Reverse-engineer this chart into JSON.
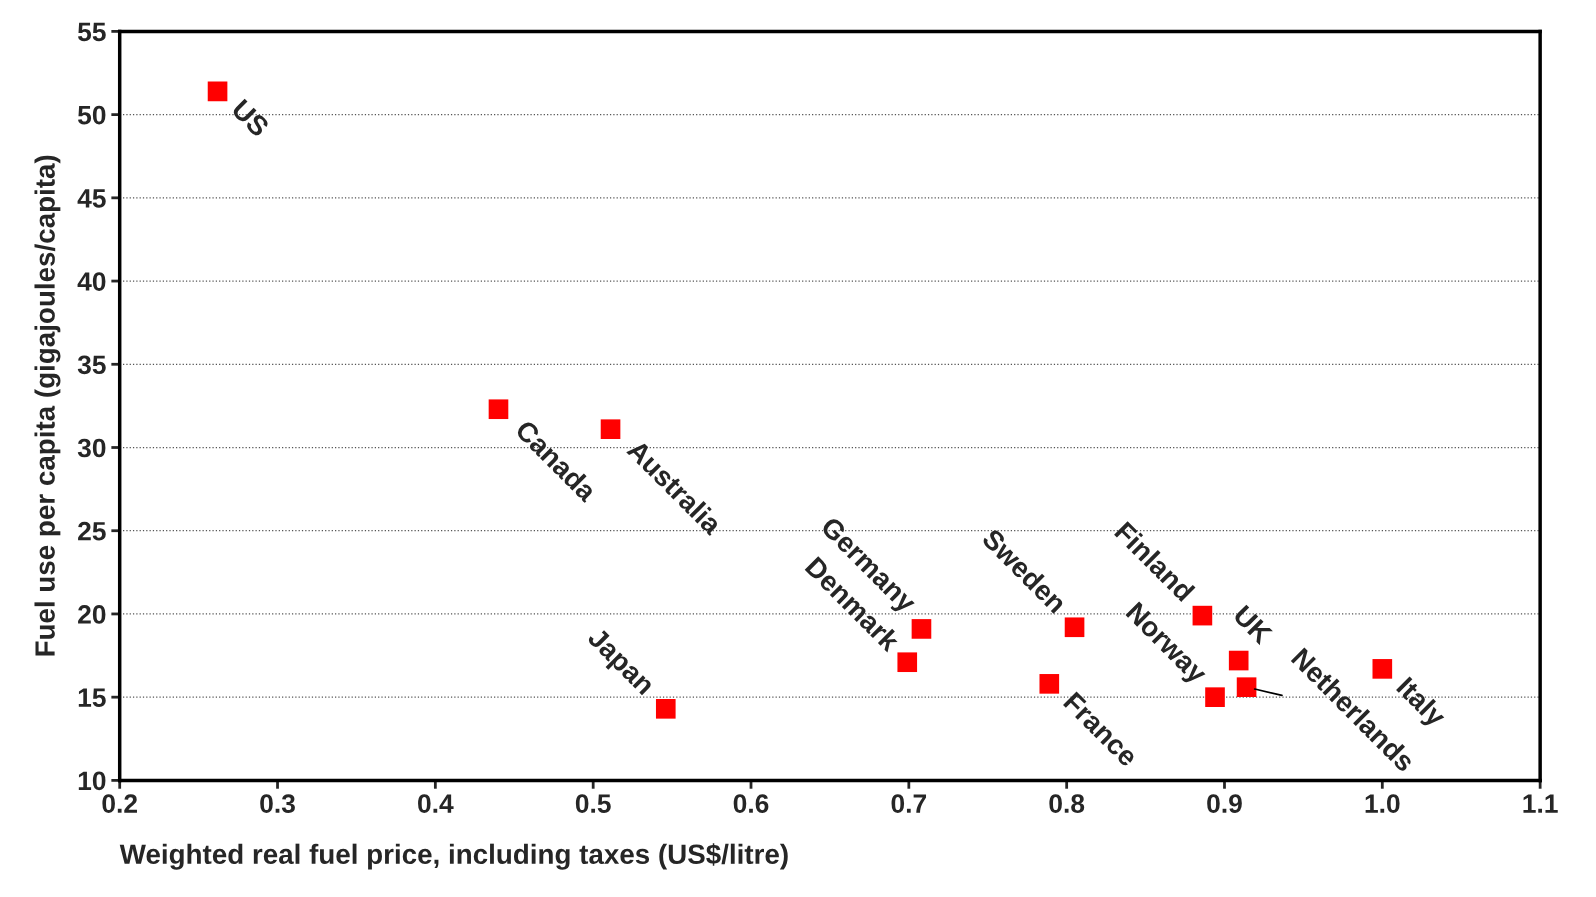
{
  "chart_data": {
    "type": "scatter",
    "xlabel": "Weighted real fuel price, including taxes (US$/litre)",
    "ylabel": "Fuel use per capita (gigajoules/capita)",
    "series": [
      {
        "color": "#ff0000",
        "x": [
          0.262,
          0.44,
          0.511,
          0.546,
          0.708,
          0.699,
          0.805,
          0.789,
          0.886,
          0.909,
          0.894,
          0.914,
          1.0
        ],
        "values": [
          51.4,
          32.3,
          31.1,
          14.3,
          19.1,
          17.1,
          19.2,
          15.8,
          19.9,
          17.2,
          15.0,
          15.6,
          16.7
        ]
      }
    ],
    "annotations": [
      {
        "text": "US",
        "x": 0.262,
        "y": 51.4
      },
      {
        "text": "Canada",
        "x": 0.44,
        "y": 32.3
      },
      {
        "text": "Australia",
        "x": 0.511,
        "y": 31.1
      },
      {
        "text": "Japan",
        "x": 0.546,
        "y": 14.3
      },
      {
        "text": "Germany",
        "x": 0.708,
        "y": 19.1
      },
      {
        "text": "Denmark",
        "x": 0.699,
        "y": 17.1
      },
      {
        "text": "Sweden",
        "x": 0.805,
        "y": 19.2
      },
      {
        "text": "France",
        "x": 0.789,
        "y": 15.8
      },
      {
        "text": "Finland",
        "x": 0.886,
        "y": 19.9
      },
      {
        "text": "UK",
        "x": 0.909,
        "y": 17.2
      },
      {
        "text": "Norway",
        "x": 0.894,
        "y": 15.0
      },
      {
        "text": "Netherlands",
        "x": 0.914,
        "y": 15.6
      },
      {
        "text": "Italy",
        "x": 1.0,
        "y": 16.7
      }
    ],
    "xlim": [
      0.2,
      1.1
    ],
    "xticks": [
      0.2,
      0.3,
      0.4,
      0.5,
      0.6,
      0.7,
      0.8,
      0.9,
      {
        "value": 1.0,
        "label": "1.0"
      },
      1.1
    ],
    "ylim": [
      10,
      55
    ],
    "yticks": [
      10,
      15,
      20,
      25,
      30,
      35,
      40,
      45,
      50,
      55
    ],
    "grid": "y",
    "marker": "square",
    "legend": false
  }
}
